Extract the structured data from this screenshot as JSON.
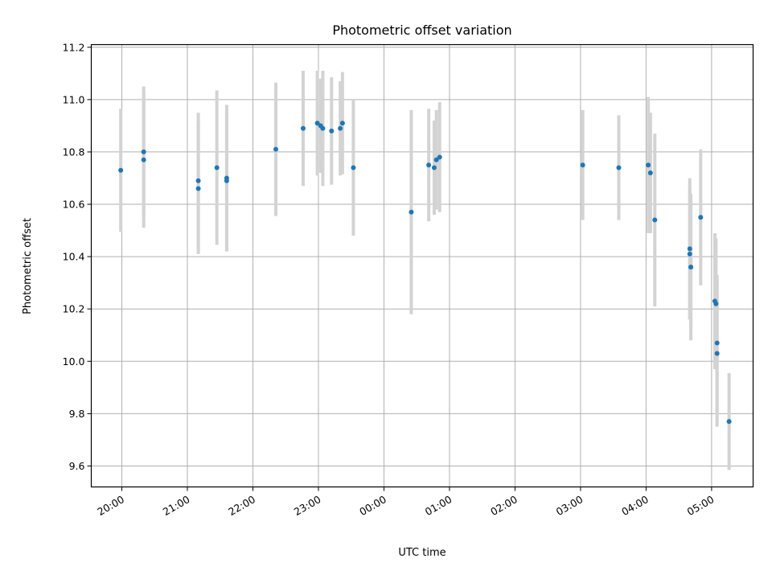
{
  "chart_data": {
    "type": "scatter",
    "title": "Photometric offset variation",
    "xlabel": "UTC time",
    "ylabel": "Photometric offset",
    "x_ticks": [
      "20:00",
      "21:00",
      "22:00",
      "23:00",
      "00:00",
      "01:00",
      "02:00",
      "03:00",
      "04:00",
      "05:00"
    ],
    "y_ticks": [
      "9.6",
      "9.8",
      "10.0",
      "10.2",
      "10.4",
      "10.6",
      "10.8",
      "11.0",
      "11.2"
    ],
    "xlim": [
      "19:32",
      "05:38"
    ],
    "ylim": [
      9.52,
      11.21
    ],
    "grid": true,
    "point_color": "#1f77b4",
    "errorbar_color": "#d3d3d3",
    "points": [
      {
        "time": "19:59",
        "y": 10.73,
        "err": 0.235
      },
      {
        "time": "20:20",
        "y": 10.8,
        "err": 0.25
      },
      {
        "time": "20:20",
        "y": 10.77,
        "err": 0.26
      },
      {
        "time": "21:10",
        "y": 10.69,
        "err": 0.26
      },
      {
        "time": "21:10",
        "y": 10.66,
        "err": 0.25
      },
      {
        "time": "21:27",
        "y": 10.74,
        "err": 0.295
      },
      {
        "time": "21:36",
        "y": 10.7,
        "err": 0.28
      },
      {
        "time": "21:36",
        "y": 10.69,
        "err": 0.27
      },
      {
        "time": "22:21",
        "y": 10.81,
        "err": 0.255
      },
      {
        "time": "22:46",
        "y": 10.89,
        "err": 0.22
      },
      {
        "time": "22:59",
        "y": 10.91,
        "err": 0.2
      },
      {
        "time": "23:02",
        "y": 10.9,
        "err": 0.18
      },
      {
        "time": "23:04",
        "y": 10.89,
        "err": 0.22
      },
      {
        "time": "23:12",
        "y": 10.88,
        "err": 0.205
      },
      {
        "time": "23:20",
        "y": 10.89,
        "err": 0.18
      },
      {
        "time": "23:22",
        "y": 10.91,
        "err": 0.195
      },
      {
        "time": "23:32",
        "y": 10.74,
        "err": 0.26
      },
      {
        "time": "00:25",
        "y": 10.57,
        "err": 0.39
      },
      {
        "time": "00:41",
        "y": 10.75,
        "err": 0.215
      },
      {
        "time": "00:46",
        "y": 10.74,
        "err": 0.18
      },
      {
        "time": "00:48",
        "y": 10.77,
        "err": 0.19
      },
      {
        "time": "00:51",
        "y": 10.78,
        "err": 0.21
      },
      {
        "time": "03:02",
        "y": 10.75,
        "err": 0.21
      },
      {
        "time": "03:35",
        "y": 10.74,
        "err": 0.2
      },
      {
        "time": "04:02",
        "y": 10.75,
        "err": 0.26
      },
      {
        "time": "04:04",
        "y": 10.72,
        "err": 0.23
      },
      {
        "time": "04:08",
        "y": 10.54,
        "err": 0.33
      },
      {
        "time": "04:40",
        "y": 10.43,
        "err": 0.27
      },
      {
        "time": "04:40",
        "y": 10.41,
        "err": 0.25
      },
      {
        "time": "04:41",
        "y": 10.36,
        "err": 0.28
      },
      {
        "time": "04:41",
        "y": 10.36,
        "err": 0.235
      },
      {
        "time": "04:50",
        "y": 10.55,
        "err": 0.26
      },
      {
        "time": "05:03",
        "y": 10.23,
        "err": 0.26
      },
      {
        "time": "05:04",
        "y": 10.22,
        "err": 0.25
      },
      {
        "time": "05:05",
        "y": 10.07,
        "err": 0.26
      },
      {
        "time": "05:05",
        "y": 10.03,
        "err": 0.28
      },
      {
        "time": "05:16",
        "y": 9.77,
        "err": 0.185
      }
    ]
  }
}
